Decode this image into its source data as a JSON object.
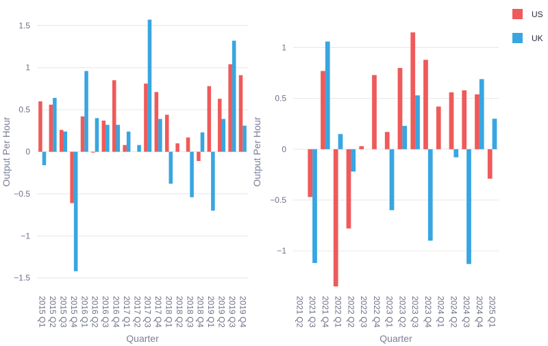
{
  "legend": [
    {
      "name": "US",
      "color": "#ef5a5a"
    },
    {
      "name": "UK",
      "color": "#38a6e0"
    }
  ],
  "chart_data": [
    {
      "type": "bar",
      "xlabel": "Quarter",
      "ylabel": "Output Per Hour",
      "ylim": [
        -1.6,
        1.6
      ],
      "yticks": [
        {
          "value": 1.5,
          "label": "1.5"
        },
        {
          "value": 1,
          "label": "1"
        },
        {
          "value": 0.5,
          "label": "0.5"
        },
        {
          "value": 0,
          "label": "0"
        },
        {
          "value": -0.5,
          "label": "−0.5"
        },
        {
          "value": -1,
          "label": "−1"
        },
        {
          "value": -1.5,
          "label": "−1.5"
        }
      ],
      "grid": true,
      "categories": [
        "2015 Q1",
        "2015 Q2",
        "2015 Q3",
        "2015 Q4",
        "2016 Q1",
        "2016 Q2",
        "2016 Q3",
        "2016 Q4",
        "2017 Q1",
        "2017 Q2",
        "2017 Q3",
        "2017 Q4",
        "2018 Q1",
        "2018 Q2",
        "2018 Q3",
        "2018 Q4",
        "2019 Q1",
        "2019 Q2",
        "2019 Q3",
        "2019 Q4"
      ],
      "series": [
        {
          "name": "US",
          "values": [
            0.6,
            0.56,
            0.26,
            -0.61,
            0.42,
            -0.01,
            0.37,
            0.85,
            0.08,
            0.0,
            0.81,
            0.71,
            0.44,
            0.1,
            0.17,
            -0.11,
            0.78,
            0.63,
            1.04,
            0.91
          ]
        },
        {
          "name": "UK",
          "values": [
            -0.16,
            0.64,
            0.24,
            -1.42,
            0.96,
            0.4,
            0.32,
            0.32,
            0.24,
            0.08,
            1.57,
            0.39,
            -0.38,
            0.0,
            -0.54,
            0.23,
            -0.7,
            0.39,
            1.32,
            0.31
          ]
        }
      ]
    },
    {
      "type": "bar",
      "xlabel": "Quarter",
      "ylabel": "Output Per Hour",
      "ylim": [
        -1.35,
        1.3
      ],
      "yticks": [
        {
          "value": 1,
          "label": "1"
        },
        {
          "value": 0.5,
          "label": "0.5"
        },
        {
          "value": 0,
          "label": "0"
        },
        {
          "value": -0.5,
          "label": "−0.5"
        },
        {
          "value": -1,
          "label": "−1"
        }
      ],
      "grid": true,
      "categories": [
        "2021 Q2",
        "2021 Q3",
        "2021 Q4",
        "2022 Q1",
        "2022 Q2",
        "2022 Q3",
        "2022 Q4",
        "2023 Q1",
        "2023 Q2",
        "2023 Q3",
        "2023 Q4",
        "2024 Q1",
        "2024 Q2",
        "2024 Q3",
        "2024 Q4",
        "2025 Q1"
      ],
      "series": [
        {
          "name": "US",
          "values": [
            0.0,
            -0.47,
            0.77,
            -1.35,
            -0.78,
            0.03,
            0.73,
            0.17,
            0.8,
            1.15,
            0.88,
            0.42,
            0.56,
            0.58,
            0.54,
            -0.29
          ]
        },
        {
          "name": "UK",
          "values": [
            0.0,
            -1.12,
            1.06,
            0.15,
            -0.22,
            0.0,
            0.0,
            -0.6,
            0.23,
            0.53,
            -0.9,
            0.0,
            -0.08,
            -1.13,
            0.69,
            0.3
          ]
        }
      ]
    }
  ]
}
